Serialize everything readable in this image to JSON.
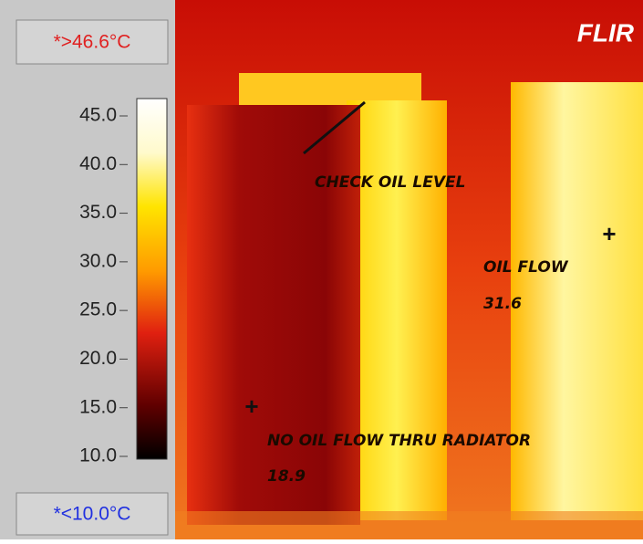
{
  "scale": {
    "max_label": "*>46.6°C",
    "min_label": "*<10.0°C",
    "ticks": [
      {
        "value": 45,
        "label": "45.0"
      },
      {
        "value": 40,
        "label": "40.0"
      },
      {
        "value": 35,
        "label": "35.0"
      },
      {
        "value": 30,
        "label": "30.0"
      },
      {
        "value": 25,
        "label": "25.0"
      },
      {
        "value": 20,
        "label": "20.0"
      },
      {
        "value": 15,
        "label": "15.0"
      },
      {
        "value": 10,
        "label": "10.0"
      }
    ]
  },
  "image": {
    "logo": "FLIR",
    "annotations": {
      "check": "CHECK OIL LEVEL",
      "oil_flow": "OIL FLOW",
      "oil_flow_temp": "31.6",
      "no_flow": "NO OIL FLOW THRU RADIATOR",
      "no_flow_temp": "18.9"
    }
  }
}
